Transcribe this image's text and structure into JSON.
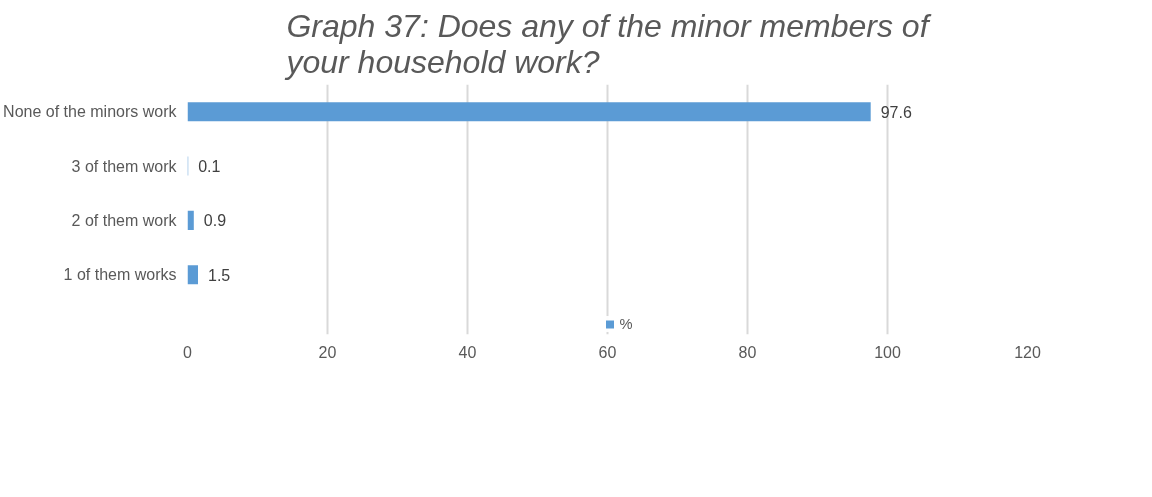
{
  "chart_data": {
    "type": "bar",
    "orientation": "horizontal",
    "title": "Graph 37: Does any of the minor members of your household work?",
    "categories": [
      "None of the minors work",
      "3 of them work",
      "2 of them work",
      "1 of them works"
    ],
    "series": [
      {
        "name": "%",
        "color": "#5b9bd5",
        "values": [
          97.6,
          0.1,
          0.9,
          1.5
        ]
      }
    ],
    "xlim": [
      0,
      120
    ],
    "xticks": [
      0,
      20,
      40,
      60,
      80,
      100,
      120
    ],
    "grid": "x",
    "legend": "bottom",
    "data_labels": true
  }
}
